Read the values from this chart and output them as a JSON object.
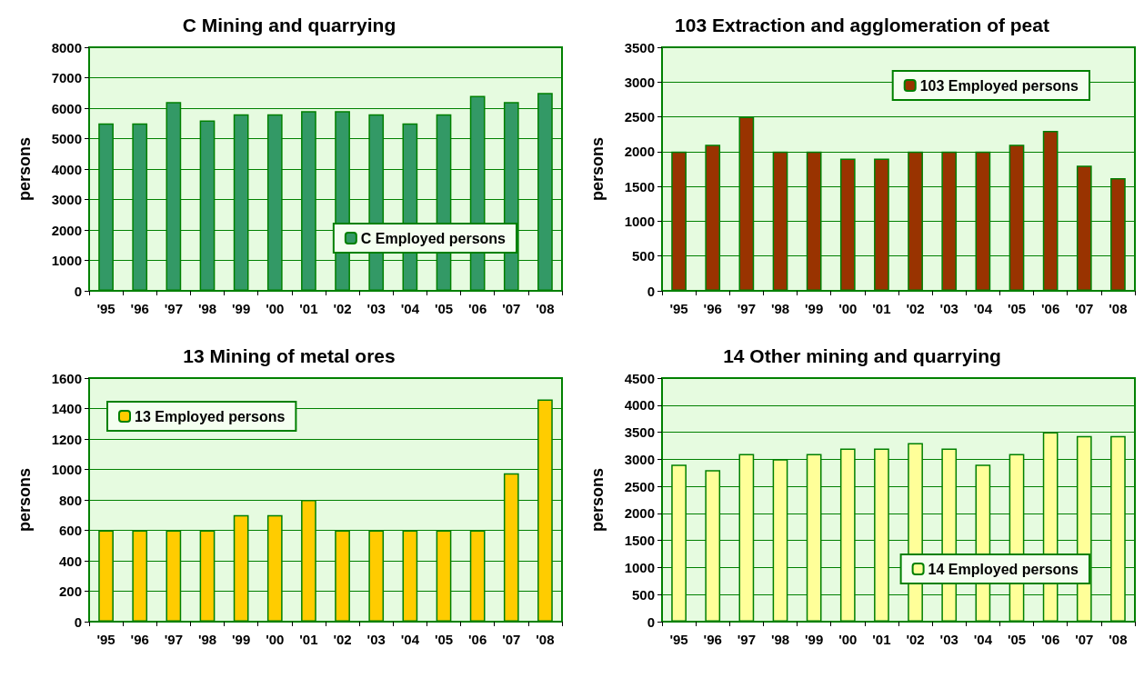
{
  "chart_data": [
    {
      "type": "bar",
      "title": "C Mining and quarrying",
      "ylabel": "persons",
      "categories": [
        "'95",
        "'96",
        "'97",
        "'98",
        "'99",
        "'00",
        "'01",
        "'02",
        "'03",
        "'04",
        "'05",
        "'06",
        "'07",
        "'08"
      ],
      "series": [
        {
          "name": "C Employed persons",
          "color": "#339966",
          "values": [
            5500,
            5500,
            6200,
            5600,
            5800,
            5800,
            5900,
            5900,
            5800,
            5500,
            5800,
            6400,
            6200,
            6500
          ]
        }
      ],
      "ylim": [
        0,
        8000
      ],
      "yticks": [
        0,
        1000,
        2000,
        3000,
        4000,
        5000,
        6000,
        7000,
        8000
      ],
      "grid": "y",
      "legend": "bottom right"
    },
    {
      "type": "bar",
      "title": "103 Extraction and agglomeration of peat",
      "ylabel": "persons",
      "categories": [
        "'95",
        "'96",
        "'97",
        "'98",
        "'99",
        "'00",
        "'01",
        "'02",
        "'03",
        "'04",
        "'05",
        "'06",
        "'07",
        "'08"
      ],
      "series": [
        {
          "name": "103 Employed persons",
          "color": "#993300",
          "values": [
            2000,
            2100,
            2500,
            2000,
            2000,
            1900,
            1900,
            2000,
            2000,
            2000,
            2100,
            2300,
            1800,
            1620
          ]
        }
      ],
      "ylim": [
        0,
        3500
      ],
      "yticks": [
        0,
        500,
        1000,
        1500,
        2000,
        2500,
        3000,
        3500
      ],
      "grid": "y",
      "legend": "top right"
    },
    {
      "type": "bar",
      "title": "13 Mining of metal ores",
      "ylabel": "persons",
      "categories": [
        "'95",
        "'96",
        "'97",
        "'98",
        "'99",
        "'00",
        "'01",
        "'02",
        "'03",
        "'04",
        "'05",
        "'06",
        "'07",
        "'08"
      ],
      "series": [
        {
          "name": "13 Employed persons",
          "color": "#ffcc00",
          "values": [
            600,
            600,
            600,
            600,
            700,
            700,
            800,
            600,
            600,
            600,
            600,
            600,
            975,
            1460
          ]
        }
      ],
      "ylim": [
        0,
        1600
      ],
      "yticks": [
        0,
        200,
        400,
        600,
        800,
        1000,
        1200,
        1400,
        1600
      ],
      "grid": "y",
      "legend": "top left"
    },
    {
      "type": "bar",
      "title": "14 Other mining and quarrying",
      "ylabel": "persons",
      "categories": [
        "'95",
        "'96",
        "'97",
        "'98",
        "'99",
        "'00",
        "'01",
        "'02",
        "'03",
        "'04",
        "'05",
        "'06",
        "'07",
        "'08"
      ],
      "series": [
        {
          "name": "14 Employed persons",
          "color": "#ffff99",
          "values": [
            2900,
            2800,
            3100,
            3000,
            3100,
            3200,
            3200,
            3300,
            3200,
            2900,
            3100,
            3500,
            3430,
            3430
          ]
        }
      ],
      "ylim": [
        0,
        4500
      ],
      "yticks": [
        0,
        500,
        1000,
        1500,
        2000,
        2500,
        3000,
        3500,
        4000,
        4500
      ],
      "grid": "y",
      "legend": "bottom right"
    }
  ]
}
